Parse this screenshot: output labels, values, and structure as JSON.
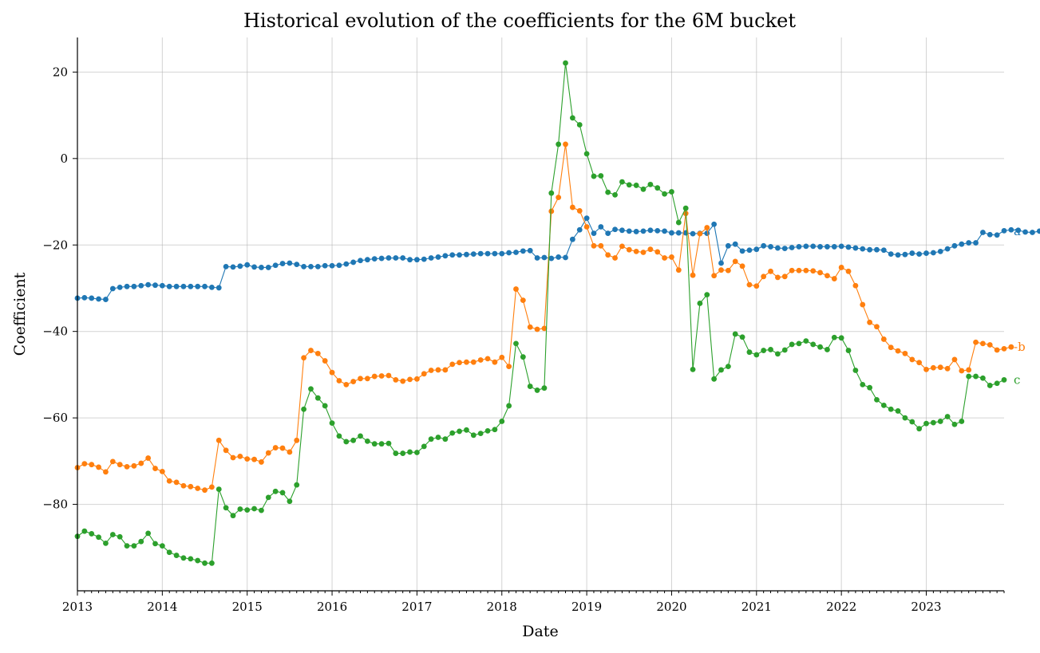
{
  "chart_data": {
    "type": "line",
    "title": "Historical evolution of the coefficients for the 6M bucket",
    "xlabel": "Date",
    "ylabel": "Coefficient",
    "x_start": "2013-01",
    "x_frequency": "monthly",
    "xlim": [
      "2013-01",
      "2023-12"
    ],
    "ylim": [
      -100,
      28
    ],
    "xticks": [
      "2013",
      "2014",
      "2015",
      "2016",
      "2017",
      "2018",
      "2019",
      "2020",
      "2021",
      "2022",
      "2023"
    ],
    "yticks": [
      -80,
      -60,
      -40,
      -20,
      0,
      20
    ],
    "ytick_labels": [
      "−80",
      "−60",
      "−40",
      "−20",
      "0",
      "20"
    ],
    "grid": true,
    "legend": "inline labels at right end of each series",
    "series": [
      {
        "name": "a",
        "color": "#1f77b4",
        "values": [
          -32.3,
          -32.2,
          -32.3,
          -32.5,
          -32.6,
          -30.1,
          -29.8,
          -29.6,
          -29.6,
          -29.4,
          -29.2,
          -29.3,
          -29.4,
          -29.6,
          -29.6,
          -29.6,
          -29.6,
          -29.6,
          -29.6,
          -29.8,
          -29.9,
          -25.0,
          -25.1,
          -24.9,
          -24.6,
          -25.1,
          -25.2,
          -25.2,
          -24.7,
          -24.3,
          -24.2,
          -24.5,
          -25.0,
          -25.0,
          -25.0,
          -24.8,
          -24.8,
          -24.7,
          -24.4,
          -24.0,
          -23.6,
          -23.4,
          -23.2,
          -23.1,
          -23.0,
          -23.0,
          -23.0,
          -23.4,
          -23.4,
          -23.3,
          -23.0,
          -22.8,
          -22.5,
          -22.3,
          -22.3,
          -22.2,
          -22.1,
          -22.0,
          -22.0,
          -22.0,
          -22.0,
          -21.8,
          -21.7,
          -21.4,
          -21.3,
          -23.0,
          -22.9,
          -23.1,
          -22.8,
          -22.9,
          -18.7,
          -16.5,
          -13.8,
          -17.3,
          -15.8,
          -17.3,
          -16.4,
          -16.6,
          -16.8,
          -16.9,
          -16.8,
          -16.6,
          -16.7,
          -16.8,
          -17.2,
          -17.2,
          -17.2,
          -17.4,
          -17.3,
          -17.3,
          -15.2,
          -24.2,
          -20.2,
          -19.8,
          -21.4,
          -21.2,
          -21.0,
          -20.2,
          -20.4,
          -20.7,
          -20.8,
          -20.6,
          -20.4,
          -20.3,
          -20.3,
          -20.4,
          -20.4,
          -20.4,
          -20.3,
          -20.5,
          -20.7,
          -20.9,
          -21.1,
          -21.1,
          -21.2,
          -22.1,
          -22.3,
          -22.2,
          -21.9,
          -22.1,
          -21.9,
          -21.8,
          -21.5,
          -20.9,
          -20.2,
          -19.8,
          -19.5,
          -19.5,
          -17.1,
          -17.6,
          -17.7,
          -16.7,
          -16.5,
          -16.6,
          -17.0,
          -17.1,
          -16.8
        ]
      },
      {
        "name": "-b",
        "color": "#ff7f0e",
        "values": [
          -71.5,
          -70.6,
          -70.8,
          -71.4,
          -72.5,
          -70.1,
          -70.8,
          -71.3,
          -71.1,
          -70.5,
          -69.3,
          -71.7,
          -72.4,
          -74.6,
          -74.9,
          -75.7,
          -75.9,
          -76.3,
          -76.7,
          -76.0,
          -65.2,
          -67.5,
          -69.2,
          -68.9,
          -69.5,
          -69.6,
          -70.2,
          -68.1,
          -66.9,
          -67.0,
          -67.9,
          -65.2,
          -46.1,
          -44.4,
          -45.1,
          -46.8,
          -49.5,
          -51.4,
          -52.3,
          -51.6,
          -50.9,
          -50.9,
          -50.4,
          -50.3,
          -50.2,
          -51.2,
          -51.5,
          -51.1,
          -51.0,
          -49.8,
          -49.0,
          -48.9,
          -48.9,
          -47.6,
          -47.2,
          -47.1,
          -47.1,
          -46.6,
          -46.3,
          -47.1,
          -46.0,
          -48.1,
          -30.2,
          -32.8,
          -39.0,
          -39.5,
          -39.3,
          -12.2,
          -9.0,
          3.3,
          -11.3,
          -12.1,
          -15.8,
          -20.2,
          -20.2,
          -22.3,
          -23.0,
          -20.3,
          -21.1,
          -21.5,
          -21.7,
          -21.0,
          -21.6,
          -23.0,
          -22.8,
          -25.8,
          -12.7,
          -27.0,
          -17.4,
          -16.0,
          -27.1,
          -25.8,
          -25.9,
          -23.8,
          -24.9,
          -29.2,
          -29.5,
          -27.3,
          -26.1,
          -27.5,
          -27.3,
          -25.9,
          -25.9,
          -25.9,
          -26.0,
          -26.4,
          -27.1,
          -27.8,
          -25.2,
          -26.1,
          -29.4,
          -33.8,
          -37.9,
          -38.9,
          -41.8,
          -43.7,
          -44.5,
          -45.1,
          -46.5,
          -47.2,
          -48.8,
          -48.4,
          -48.3,
          -48.6,
          -46.5,
          -49.1,
          -48.9,
          -42.5,
          -42.8,
          -43.1,
          -44.3,
          -44.0,
          -43.6
        ]
      },
      {
        "name": "c",
        "color": "#2ca02c",
        "values": [
          -87.4,
          -86.2,
          -86.8,
          -87.6,
          -89.0,
          -87.0,
          -87.5,
          -89.6,
          -89.6,
          -88.6,
          -86.7,
          -89.1,
          -89.6,
          -91.1,
          -91.8,
          -92.4,
          -92.6,
          -93.0,
          -93.6,
          -93.6,
          -76.5,
          -80.8,
          -82.6,
          -81.1,
          -81.3,
          -81.0,
          -81.4,
          -78.4,
          -77.0,
          -77.3,
          -79.3,
          -75.5,
          -58.0,
          -53.3,
          -55.4,
          -57.2,
          -61.2,
          -64.2,
          -65.5,
          -65.2,
          -64.2,
          -65.4,
          -66.0,
          -66.0,
          -65.9,
          -68.2,
          -68.2,
          -67.9,
          -68.0,
          -66.6,
          -64.9,
          -64.5,
          -64.9,
          -63.5,
          -63.1,
          -62.8,
          -64.0,
          -63.6,
          -63.0,
          -62.7,
          -60.8,
          -57.2,
          -42.8,
          -45.9,
          -52.7,
          -53.6,
          -53.1,
          -8.0,
          3.3,
          22.1,
          9.4,
          7.8,
          1.1,
          -4.1,
          -4.0,
          -7.8,
          -8.4,
          -5.4,
          -6.1,
          -6.2,
          -7.1,
          -6.0,
          -6.8,
          -8.2,
          -7.7,
          -14.8,
          -11.5,
          -48.8,
          -33.5,
          -31.5,
          -51.0,
          -48.9,
          -48.1,
          -40.6,
          -41.3,
          -44.8,
          -45.4,
          -44.4,
          -44.2,
          -45.2,
          -44.3,
          -43.0,
          -42.8,
          -42.2,
          -43.0,
          -43.6,
          -44.2,
          -41.4,
          -41.5,
          -44.4,
          -49.0,
          -52.3,
          -53.0,
          -55.8,
          -57.1,
          -58.0,
          -58.4,
          -60.0,
          -60.9,
          -62.5,
          -61.3,
          -61.1,
          -60.8,
          -59.7,
          -61.5,
          -60.8,
          -50.4,
          -50.4,
          -50.8,
          -52.5,
          -52.0,
          -51.2
        ]
      }
    ]
  }
}
